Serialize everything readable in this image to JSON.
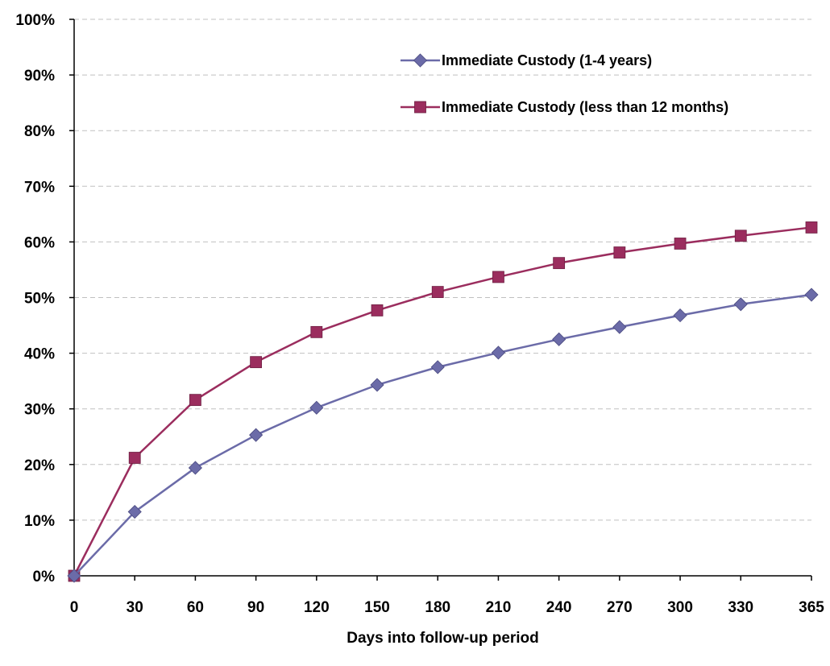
{
  "chart_data": {
    "type": "line",
    "title": "",
    "xlabel": "Days into follow-up period",
    "ylabel": "",
    "x": [
      0,
      30,
      60,
      90,
      120,
      150,
      180,
      210,
      240,
      270,
      300,
      330,
      365
    ],
    "x_tick_labels": [
      "0",
      "30",
      "60",
      "90",
      "120",
      "150",
      "180",
      "210",
      "240",
      "270",
      "300",
      "330",
      "365"
    ],
    "ylim": [
      0,
      100
    ],
    "y_ticks": [
      0,
      10,
      20,
      30,
      40,
      50,
      60,
      70,
      80,
      90,
      100
    ],
    "y_tick_labels": [
      "0%",
      "10%",
      "20%",
      "30%",
      "40%",
      "50%",
      "60%",
      "70%",
      "80%",
      "90%",
      "100%"
    ],
    "grid": "horizontal-dashed",
    "legend_position": "top-right",
    "series": [
      {
        "name": "Immediate Custody (1-4 years)",
        "marker": "diamond",
        "color": "#6B6BA8",
        "values": [
          0,
          11.5,
          19.4,
          25.3,
          30.2,
          34.3,
          37.5,
          40.1,
          42.5,
          44.7,
          46.8,
          48.8,
          50.5
        ]
      },
      {
        "name": "Immediate Custody (less than 12 months)",
        "marker": "square",
        "color": "#9B2D5E",
        "values": [
          0,
          21.2,
          31.6,
          38.4,
          43.8,
          47.7,
          51.0,
          53.7,
          56.2,
          58.1,
          59.7,
          61.1,
          62.6
        ]
      }
    ]
  }
}
